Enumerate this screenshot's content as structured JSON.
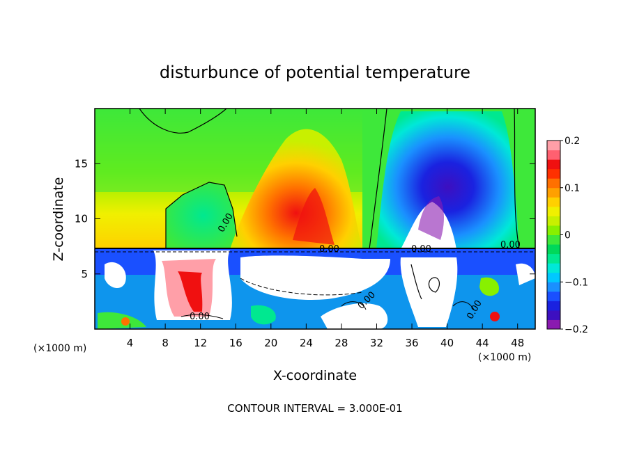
{
  "chart_data": {
    "type": "heatmap",
    "title": "disturbunce of potential temperature",
    "xlabel": "X-coordinate",
    "ylabel": "Z-coordinate",
    "x_unit": "(×1000 m)",
    "x_unit_right": "(×1000 m)",
    "xlim": [
      0,
      50
    ],
    "ylim": [
      0,
      20
    ],
    "x_ticks": [
      4,
      8,
      12,
      16,
      20,
      24,
      28,
      32,
      36,
      40,
      44,
      48
    ],
    "y_ticks": [
      5,
      10,
      15
    ],
    "colorbar": {
      "range": [
        -0.2,
        0.2
      ],
      "tick_labels": [
        "0.2",
        "0.1",
        "0",
        "−0.1",
        "−0.2"
      ],
      "tick_values": [
        0.2,
        0.1,
        0,
        -0.1,
        -0.2
      ],
      "colors": [
        "#8a1ab0",
        "#3d0fc0",
        "#1a22e0",
        "#1a50ff",
        "#1a90ff",
        "#00c8ff",
        "#00e8d8",
        "#00e890",
        "#00d85a",
        "#3ee83a",
        "#88f000",
        "#c8f000",
        "#f0f000",
        "#ffd000",
        "#ffa000",
        "#ff7000",
        "#ff3000",
        "#f01010",
        "#ff6070",
        "#ff9fa8"
      ]
    },
    "contour_labels": [
      "0.00",
      "0.00",
      "0.00",
      "0.00",
      "0.00",
      "0.00",
      "0.00"
    ],
    "contour_interval_text": "CONTOUR INTERVAL = 3.000E-01"
  }
}
